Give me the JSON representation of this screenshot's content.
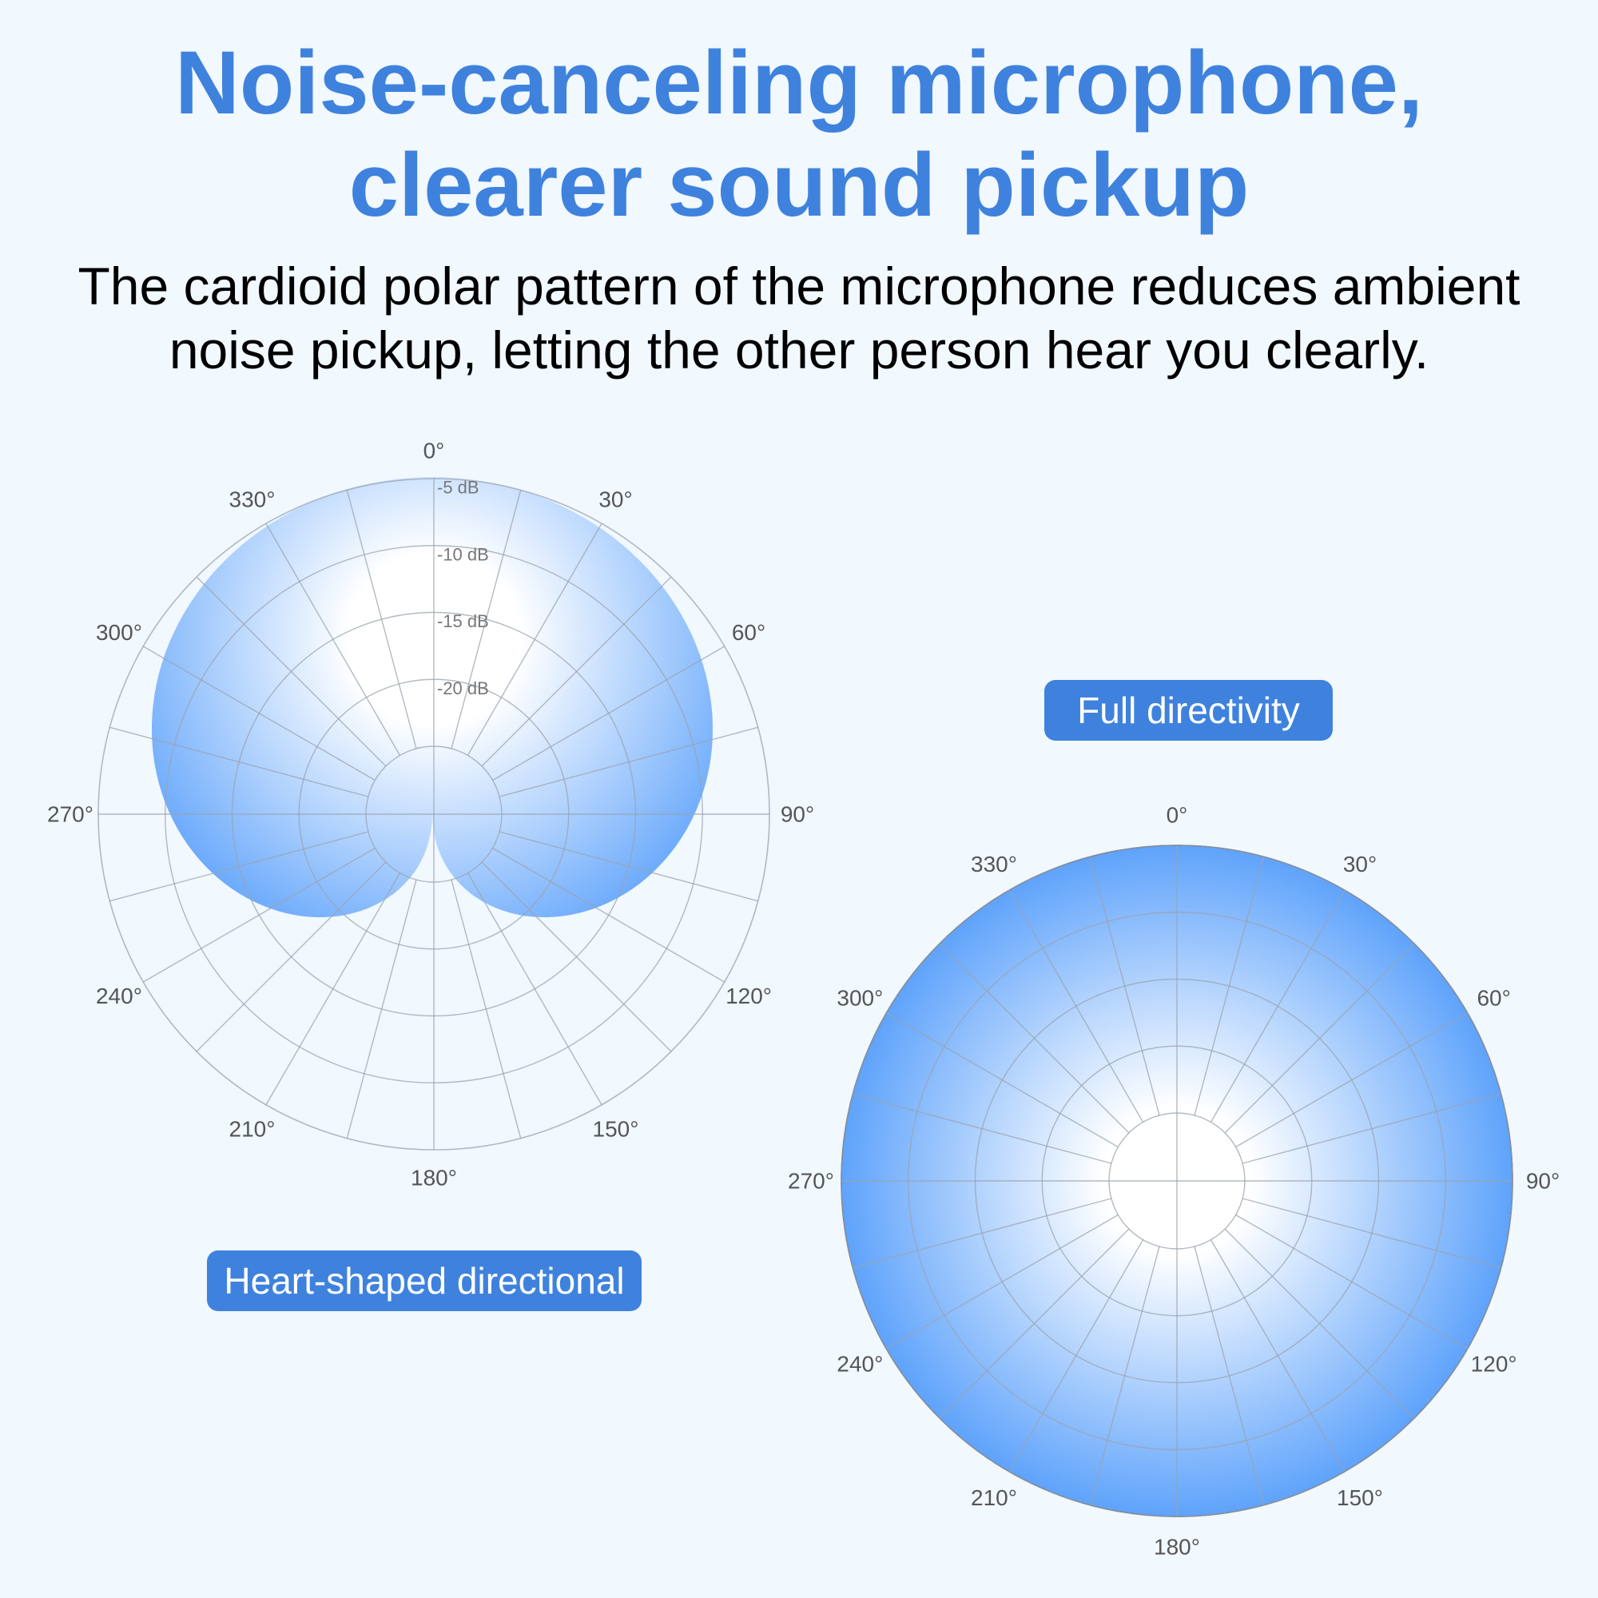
{
  "header": {
    "title_line1": "Noise-canceling microphone,",
    "title_line2": "clearer sound pickup",
    "subtitle_line1": "The cardioid polar pattern of the microphone reduces ambient",
    "subtitle_line2": "noise pickup, letting the other person hear you clearly."
  },
  "colors": {
    "accent": "#3f82dd",
    "pattern_edge": "#5fa3fb",
    "pattern_center": "#ffffff",
    "grid": "#9aa3af",
    "label": "#555555",
    "background": "#f1f8fe"
  },
  "chart_data": [
    {
      "type": "polar",
      "pattern": "cardioid",
      "label": "Heart-shaped directional",
      "angle_labels": [
        "0°",
        "30°",
        "60°",
        "90°",
        "120°",
        "150°",
        "180°",
        "210°",
        "240°",
        "270°",
        "300°",
        "330°"
      ],
      "ring_labels": [
        "-5 dB",
        "-10 dB",
        "-15 dB",
        "-20 dB"
      ],
      "spokes_degrees": 15,
      "rings": 5
    },
    {
      "type": "polar",
      "pattern": "omnidirectional",
      "label": "Full directivity",
      "angle_labels": [
        "0°",
        "30°",
        "60°",
        "90°",
        "120°",
        "150°",
        "180°",
        "210°",
        "240°",
        "270°",
        "300°",
        "330°"
      ],
      "spokes_degrees": 15,
      "rings": 5
    }
  ]
}
